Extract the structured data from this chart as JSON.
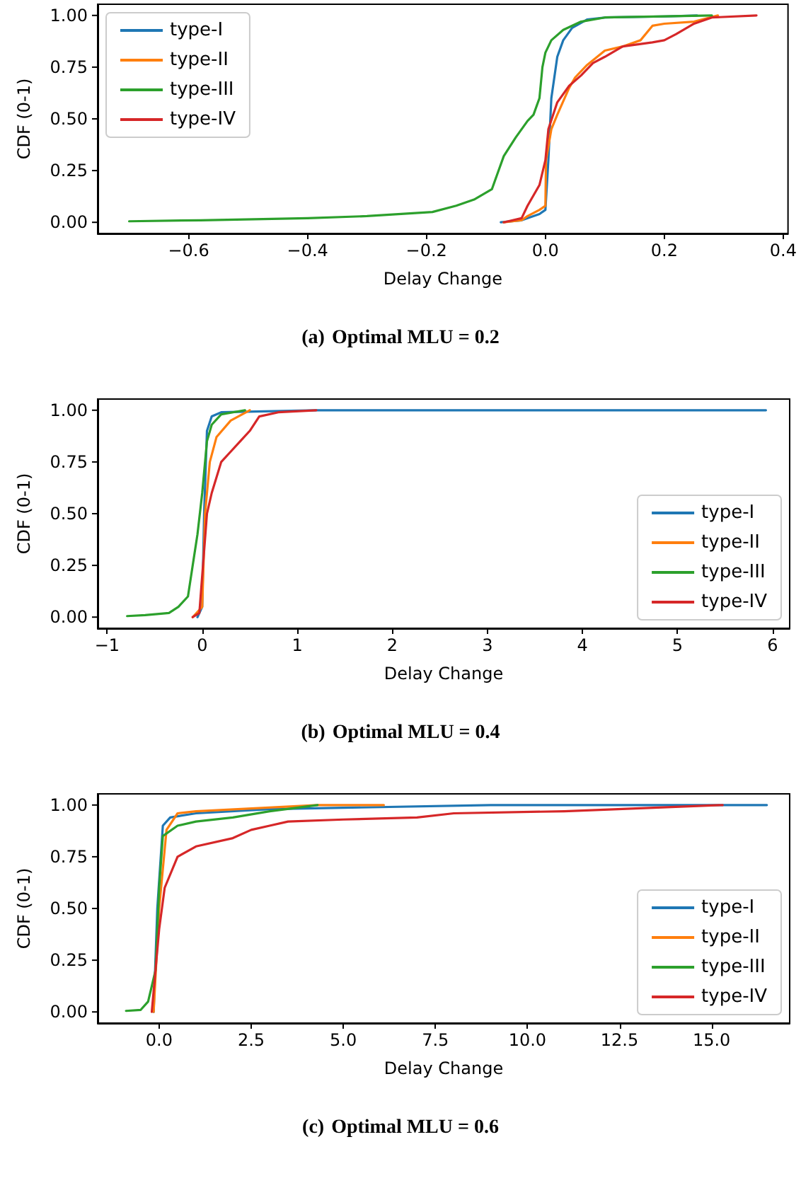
{
  "chart_data": [
    {
      "type": "line",
      "title": "(a) Optimal MLU = 0.2",
      "xlabel": "Delay Change",
      "ylabel": "CDF (0-1)",
      "legend": "top left",
      "grid": false,
      "marker": "none",
      "line_style": "solid",
      "xlim": [
        -0.753,
        0.408
      ],
      "ylim": [
        -0.054,
        1.054
      ],
      "xticks": [
        {
          "value": -0.6,
          "label": "−0.6"
        },
        {
          "value": -0.4,
          "label": "−0.4"
        },
        {
          "value": -0.2,
          "label": "−0.2"
        },
        {
          "value": 0,
          "label": "0.0"
        },
        0.2,
        0.4
      ],
      "yticks": [
        {
          "value": 0,
          "label": "0.00"
        },
        {
          "value": 0.25,
          "label": "0.25"
        },
        {
          "value": 0.5,
          "label": "0.50"
        },
        {
          "value": 0.75,
          "label": "0.75"
        },
        {
          "value": 1,
          "label": "1.00"
        }
      ],
      "series": [
        {
          "name": "type-I",
          "color": "#1f77b4",
          "x": [
            -0.075,
            -0.04,
            -0.01,
            0,
            0.005,
            0.01,
            0.02,
            0.03,
            0.045,
            0.07,
            0.1,
            0.2,
            0.255
          ],
          "values": [
            0,
            0.01,
            0.04,
            0.06,
            0.3,
            0.6,
            0.8,
            0.88,
            0.94,
            0.98,
            0.99,
            0.995,
            1
          ]
        },
        {
          "name": "type-II",
          "color": "#ff7f0e",
          "x": [
            -0.07,
            -0.04,
            -0.03,
            -0.01,
            0,
            0.001,
            0.01,
            0.02,
            0.04,
            0.05,
            0.07,
            0.1,
            0.13,
            0.16,
            0.18,
            0.2,
            0.25,
            0.29
          ],
          "values": [
            0,
            0.01,
            0.03,
            0.06,
            0.08,
            0.3,
            0.45,
            0.52,
            0.65,
            0.7,
            0.76,
            0.83,
            0.85,
            0.88,
            0.95,
            0.96,
            0.97,
            1
          ]
        },
        {
          "name": "type-III",
          "color": "#2ca02c",
          "x": [
            -0.7,
            -0.58,
            -0.4,
            -0.3,
            -0.19,
            -0.15,
            -0.12,
            -0.09,
            -0.08,
            -0.07,
            -0.05,
            -0.03,
            -0.02,
            -0.01,
            -0.005,
            0,
            0.01,
            0.03,
            0.06,
            0.1,
            0.28
          ],
          "values": [
            0.005,
            0.01,
            0.02,
            0.03,
            0.05,
            0.08,
            0.11,
            0.16,
            0.24,
            0.32,
            0.41,
            0.49,
            0.52,
            0.6,
            0.75,
            0.82,
            0.88,
            0.93,
            0.97,
            0.99,
            1
          ]
        },
        {
          "name": "type-IV",
          "color": "#d62728",
          "x": [
            -0.07,
            -0.04,
            -0.03,
            -0.01,
            0,
            0.005,
            0.02,
            0.04,
            0.06,
            0.08,
            0.1,
            0.13,
            0.18,
            0.2,
            0.22,
            0.25,
            0.28,
            0.355
          ],
          "values": [
            0,
            0.02,
            0.08,
            0.18,
            0.3,
            0.45,
            0.58,
            0.66,
            0.71,
            0.77,
            0.8,
            0.85,
            0.87,
            0.88,
            0.91,
            0.96,
            0.99,
            1
          ]
        }
      ]
    },
    {
      "type": "line",
      "title": "(b) Optimal MLU = 0.4",
      "xlabel": "Delay Change",
      "ylabel": "CDF (0-1)",
      "legend": "bottom right",
      "grid": false,
      "marker": "none",
      "line_style": "solid",
      "xlim": [
        -1.1,
        6.18
      ],
      "ylim": [
        -0.054,
        1.054
      ],
      "xticks": [
        {
          "value": -1,
          "label": "−1"
        },
        0,
        1,
        2,
        3,
        4,
        5,
        6
      ],
      "yticks": [
        {
          "value": 0,
          "label": "0.00"
        },
        {
          "value": 0.25,
          "label": "0.25"
        },
        {
          "value": 0.5,
          "label": "0.50"
        },
        {
          "value": 0.75,
          "label": "0.75"
        },
        {
          "value": 1,
          "label": "1.00"
        }
      ],
      "series": [
        {
          "name": "type-I",
          "color": "#1f77b4",
          "x": [
            -0.05,
            0,
            0.02,
            0.05,
            0.1,
            0.2,
            1.2,
            5.93
          ],
          "values": [
            0,
            0.05,
            0.5,
            0.9,
            0.97,
            0.99,
            1,
            1
          ]
        },
        {
          "name": "type-II",
          "color": "#ff7f0e",
          "x": [
            -0.1,
            0,
            0.03,
            0.08,
            0.15,
            0.3,
            0.5
          ],
          "values": [
            0,
            0.05,
            0.5,
            0.75,
            0.87,
            0.95,
            1
          ]
        },
        {
          "name": "type-III",
          "color": "#2ca02c",
          "x": [
            -0.79,
            -0.6,
            -0.35,
            -0.25,
            -0.15,
            -0.1,
            -0.05,
            0,
            0.05,
            0.1,
            0.2,
            0.45
          ],
          "values": [
            0.005,
            0.01,
            0.02,
            0.05,
            0.1,
            0.25,
            0.4,
            0.6,
            0.85,
            0.93,
            0.98,
            1
          ]
        },
        {
          "name": "type-IV",
          "color": "#d62728",
          "x": [
            -0.1,
            -0.03,
            0,
            0.05,
            0.1,
            0.2,
            0.3,
            0.4,
            0.5,
            0.6,
            0.8,
            1.2
          ],
          "values": [
            0,
            0.02,
            0.2,
            0.5,
            0.6,
            0.75,
            0.8,
            0.85,
            0.9,
            0.97,
            0.99,
            1
          ]
        }
      ]
    },
    {
      "type": "line",
      "title": "(c) Optimal MLU = 0.6",
      "xlabel": "Delay Change",
      "ylabel": "CDF (0-1)",
      "legend": "bottom right",
      "grid": false,
      "marker": "none",
      "line_style": "solid",
      "xlim": [
        -1.67,
        17.12
      ],
      "ylim": [
        -0.054,
        1.054
      ],
      "xticks": [
        {
          "value": 0,
          "label": "0.0"
        },
        2.5,
        {
          "value": 5,
          "label": "5.0"
        },
        7.5,
        {
          "value": 10,
          "label": "10.0"
        },
        12.5,
        {
          "value": 15,
          "label": "15.0"
        }
      ],
      "yticks": [
        {
          "value": 0,
          "label": "0.00"
        },
        {
          "value": 0.25,
          "label": "0.25"
        },
        {
          "value": 0.5,
          "label": "0.50"
        },
        {
          "value": 0.75,
          "label": "0.75"
        },
        {
          "value": 1,
          "label": "1.00"
        }
      ],
      "series": [
        {
          "name": "type-I",
          "color": "#1f77b4",
          "x": [
            -0.15,
            -0.05,
            0.1,
            0.3,
            1,
            3,
            9,
            16.5
          ],
          "values": [
            0,
            0.5,
            0.9,
            0.94,
            0.96,
            0.98,
            1,
            1
          ]
        },
        {
          "name": "type-II",
          "color": "#ff7f0e",
          "x": [
            -0.15,
            0,
            0.2,
            0.5,
            1,
            4.3,
            6.1
          ],
          "values": [
            0,
            0.5,
            0.88,
            0.96,
            0.97,
            1,
            1
          ]
        },
        {
          "name": "type-III",
          "color": "#2ca02c",
          "x": [
            -0.9,
            -0.5,
            -0.3,
            -0.1,
            0,
            0.1,
            0.5,
            1,
            2,
            3,
            4.3
          ],
          "values": [
            0.005,
            0.01,
            0.05,
            0.2,
            0.6,
            0.85,
            0.9,
            0.92,
            0.94,
            0.97,
            1
          ]
        },
        {
          "name": "type-IV",
          "color": "#d62728",
          "x": [
            -0.2,
            -0.1,
            0,
            0.15,
            0.5,
            1,
            2,
            2.5,
            3,
            3.5,
            5,
            7,
            8,
            11,
            15.3
          ],
          "values": [
            0,
            0.2,
            0.4,
            0.6,
            0.75,
            0.8,
            0.84,
            0.88,
            0.9,
            0.92,
            0.93,
            0.94,
            0.96,
            0.97,
            1
          ]
        }
      ]
    }
  ]
}
